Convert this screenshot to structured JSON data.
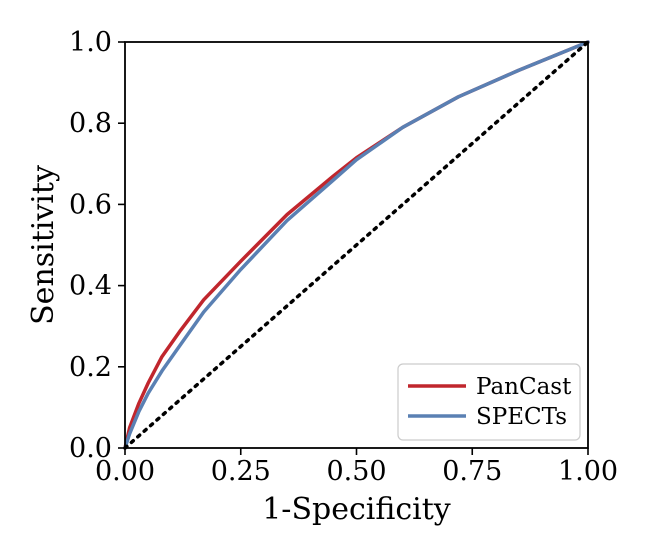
{
  "chart_data": {
    "type": "line",
    "title": "",
    "xlabel": "1-Specificity",
    "ylabel": "Sensitivity",
    "xlim": [
      0.0,
      1.0
    ],
    "ylim": [
      0.0,
      1.0
    ],
    "xticks": [
      "0.00",
      "0.25",
      "0.50",
      "0.75",
      "1.00"
    ],
    "yticks": [
      "0.0",
      "0.2",
      "0.4",
      "0.6",
      "0.8",
      "1.0"
    ],
    "grid": false,
    "legend_position": "bottom-right",
    "series": [
      {
        "name": "PanCast",
        "color": "#c0262d",
        "x": [
          0.0,
          0.01,
          0.03,
          0.05,
          0.08,
          0.12,
          0.17,
          0.25,
          0.35,
          0.45,
          0.5,
          0.6,
          0.72,
          0.85,
          1.0
        ],
        "y": [
          0.0,
          0.05,
          0.11,
          0.16,
          0.225,
          0.29,
          0.365,
          0.46,
          0.575,
          0.67,
          0.715,
          0.79,
          0.865,
          0.93,
          1.0
        ]
      },
      {
        "name": "SPECTs",
        "color": "#5a80b3",
        "x": [
          0.0,
          0.01,
          0.03,
          0.05,
          0.08,
          0.12,
          0.17,
          0.25,
          0.35,
          0.45,
          0.5,
          0.6,
          0.72,
          0.85,
          1.0
        ],
        "y": [
          0.0,
          0.035,
          0.09,
          0.135,
          0.19,
          0.255,
          0.335,
          0.44,
          0.56,
          0.66,
          0.71,
          0.79,
          0.865,
          0.93,
          1.0
        ]
      },
      {
        "name": "",
        "style": "dotted",
        "color": "#000000",
        "x": [
          0.0,
          1.0
        ],
        "y": [
          0.0,
          1.0
        ]
      }
    ]
  }
}
